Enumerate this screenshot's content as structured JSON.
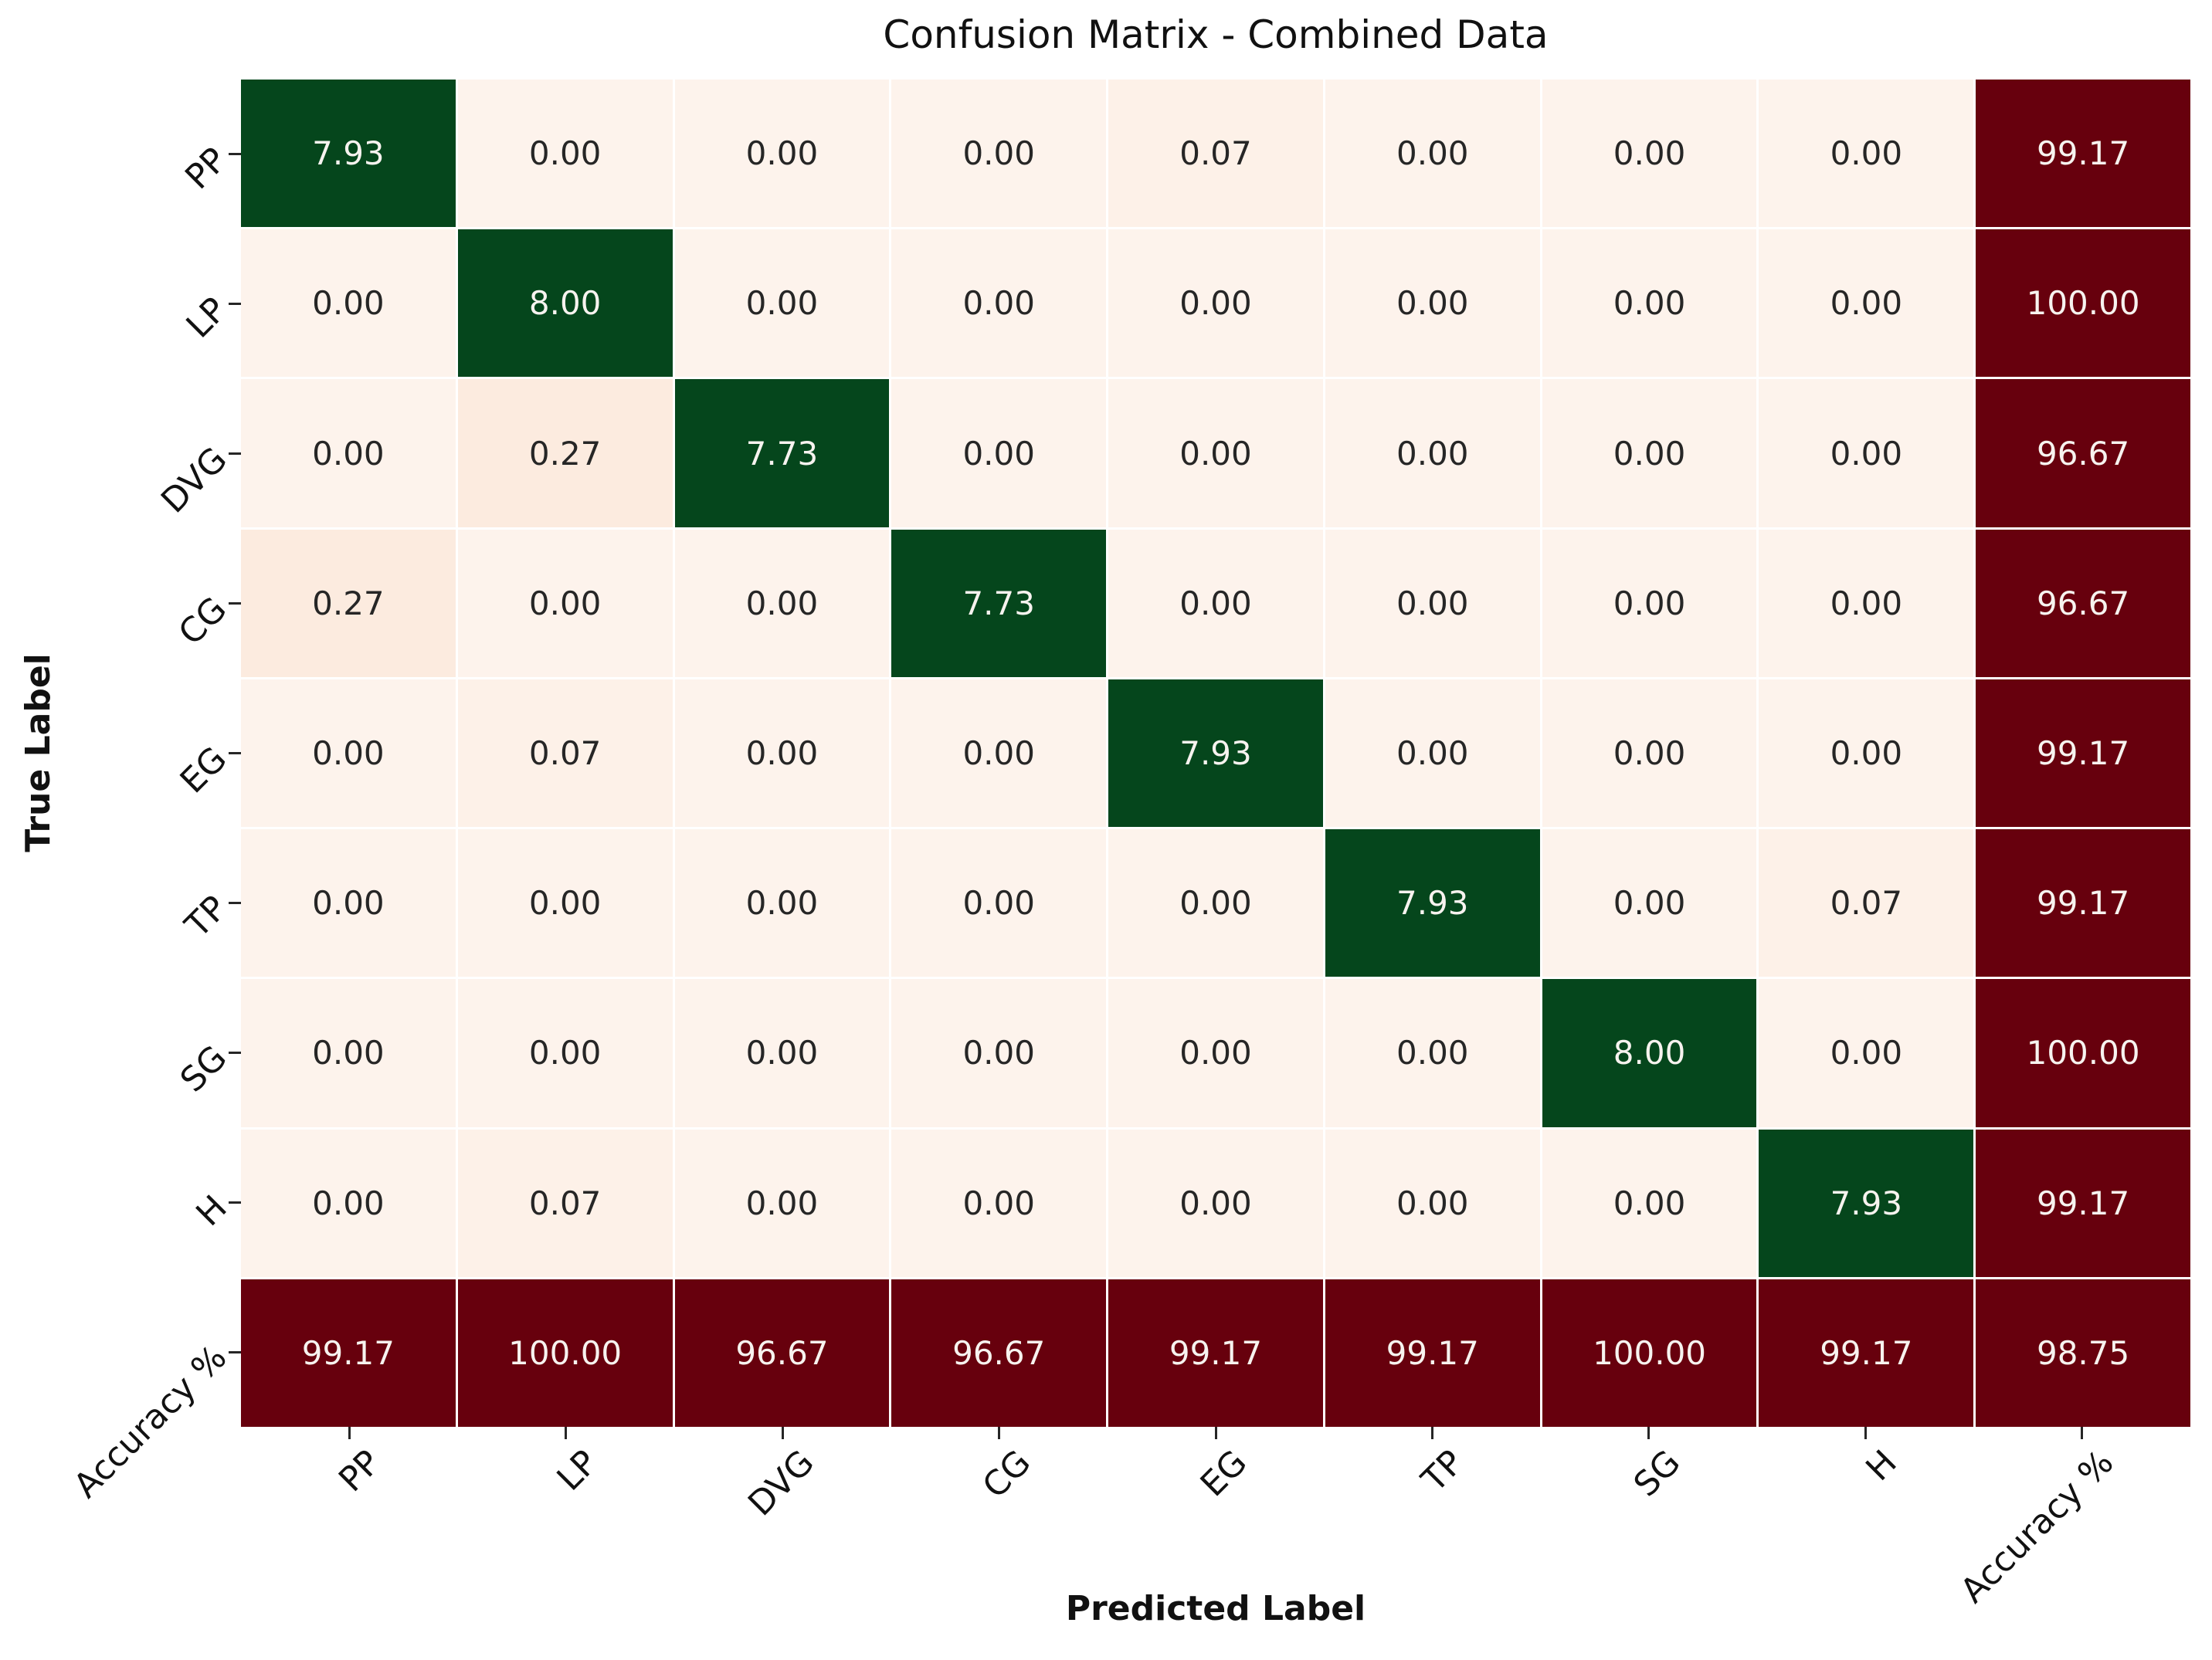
{
  "title": "Confusion Matrix - Combined Data",
  "axes": {
    "xlabel": "Predicted Label",
    "ylabel": "True Label"
  },
  "chart_data": {
    "type": "heatmap",
    "title": "Confusion Matrix - Combined Data",
    "xlabel": "Predicted Label",
    "ylabel": "True Label",
    "x_tick_labels": [
      "PP",
      "LP",
      "DVG",
      "CG",
      "EG",
      "TP",
      "SG",
      "H",
      "Accuracy %"
    ],
    "y_tick_labels": [
      "PP",
      "LP",
      "DVG",
      "CG",
      "EG",
      "TP",
      "SG",
      "H",
      "Accuracy %"
    ],
    "tick_rotation_deg": 45,
    "grid": "white gridlines between cells",
    "legend": "none",
    "value_decimals": 2,
    "matrix": [
      [
        7.93,
        0.0,
        0.0,
        0.0,
        0.07,
        0.0,
        0.0,
        0.0,
        99.17
      ],
      [
        0.0,
        8.0,
        0.0,
        0.0,
        0.0,
        0.0,
        0.0,
        0.0,
        100.0
      ],
      [
        0.0,
        0.27,
        7.73,
        0.0,
        0.0,
        0.0,
        0.0,
        0.0,
        96.67
      ],
      [
        0.27,
        0.0,
        0.0,
        7.73,
        0.0,
        0.0,
        0.0,
        0.0,
        96.67
      ],
      [
        0.0,
        0.07,
        0.0,
        0.0,
        7.93,
        0.0,
        0.0,
        0.0,
        99.17
      ],
      [
        0.0,
        0.0,
        0.0,
        0.0,
        0.0,
        7.93,
        0.0,
        0.07,
        99.17
      ],
      [
        0.0,
        0.0,
        0.0,
        0.0,
        0.0,
        0.0,
        8.0,
        0.0,
        100.0
      ],
      [
        0.0,
        0.07,
        0.0,
        0.0,
        0.0,
        0.0,
        0.0,
        7.93,
        99.17
      ],
      [
        99.17,
        100.0,
        96.67,
        96.67,
        99.17,
        99.17,
        100.0,
        99.17,
        98.75
      ]
    ],
    "colors": {
      "diagonal_high": "#05461c",
      "accuracy_band": "#67000d",
      "cell_zero": "#fdf3ec",
      "cell_low": "#fdf1e8",
      "cell_mid": "#fcebdf",
      "text_on_dark": "#f7f3ef",
      "text_on_light": "#262626",
      "gridline": "#ffffff",
      "tick": "#262626"
    }
  }
}
